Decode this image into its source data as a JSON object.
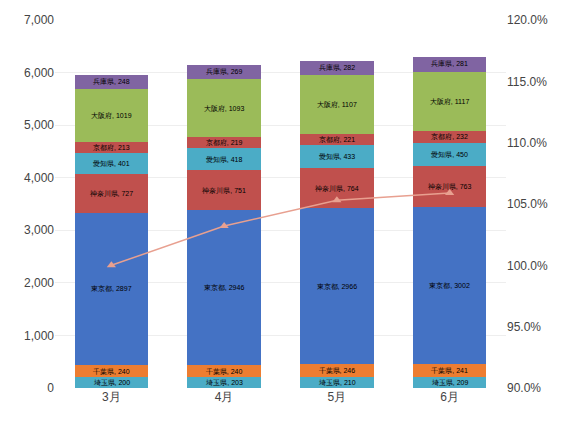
{
  "chart_data": {
    "type": "bar",
    "stacked": true,
    "data_labels": true,
    "grid": true,
    "categories": [
      "3月",
      "4月",
      "5月",
      "6月"
    ],
    "series": [
      {
        "name": "埼玉県",
        "color": "#4BACC6",
        "values": [
          200,
          203,
          210,
          209
        ],
        "value_labels": [
          "埼玉県, 200",
          "埼玉県, 203",
          "埼玉県, 210",
          "埼玉県, 209"
        ]
      },
      {
        "name": "千葉県",
        "color": "#ED7D31",
        "values": [
          240,
          240,
          246,
          241
        ],
        "value_labels": [
          "千葉県, 240",
          "千葉県, 240",
          "千葉県, 246",
          "千葉県, 241"
        ]
      },
      {
        "name": "東京都",
        "color": "#4472C4",
        "values": [
          2897,
          2946,
          2966,
          3002
        ],
        "value_labels": [
          "東京都, 2897",
          "東京都, 2946",
          "東京都, 2966",
          "東京都, 3002"
        ]
      },
      {
        "name": "神奈川県",
        "color": "#C0504D",
        "values": [
          727,
          751,
          764,
          763
        ],
        "value_labels": [
          "神奈川県, 727",
          "神奈川県, 751",
          "神奈川県, 764",
          "神奈川県, 763"
        ]
      },
      {
        "name": "愛知県",
        "color": "#4BACC6",
        "values": [
          401,
          418,
          433,
          450
        ],
        "value_labels": [
          "愛知県, 401",
          "愛知県, 418",
          "愛知県, 433",
          "愛知県, 450"
        ]
      },
      {
        "name": "京都府",
        "color": "#C0504D",
        "values": [
          213,
          219,
          221,
          232
        ],
        "value_labels": [
          "京都府, 213",
          "京都府, 219",
          "京都府, 221",
          "京都府, 232"
        ]
      },
      {
        "name": "大阪府",
        "color": "#9BBB59",
        "values": [
          1019,
          1093,
          1107,
          1117
        ],
        "value_labels": [
          "大阪府, 1019",
          "大阪府, 1093",
          "大阪府, 1107",
          "大阪府, 1117"
        ]
      },
      {
        "name": "兵庫県",
        "color": "#8064A2",
        "values": [
          248,
          269,
          282,
          281
        ],
        "value_labels": [
          "兵庫県, 248",
          "兵庫県, 269",
          "兵庫県, 282",
          "兵庫県, 281"
        ]
      },
      {
        "type": "line",
        "axis": "y2",
        "color": "#E8A090",
        "marker": "triangle-up",
        "values": [
          100.0,
          103.2,
          105.3,
          105.9
        ]
      }
    ],
    "ylim": [
      0,
      7000
    ],
    "yticks": [
      0,
      {
        "value": 1000,
        "label": "1,000"
      },
      {
        "value": 2000,
        "label": "2,000"
      },
      {
        "value": 3000,
        "label": "3,000"
      },
      {
        "value": 4000,
        "label": "4,000"
      },
      {
        "value": 5000,
        "label": "5,000"
      },
      {
        "value": 6000,
        "label": "6,000"
      },
      {
        "value": 7000,
        "label": "7,000"
      }
    ],
    "y2lim": [
      90.0,
      120.0
    ],
    "y2ticks": [
      {
        "value": 90.0,
        "label": "90.0%"
      },
      {
        "value": 95.0,
        "label": "95.0%"
      },
      {
        "value": 100.0,
        "label": "100.0%"
      },
      {
        "value": 105.0,
        "label": "105.0%"
      },
      {
        "value": 110.0,
        "label": "110.0%"
      },
      {
        "value": 115.0,
        "label": "115.0%"
      },
      {
        "value": 120.0,
        "label": "120.0%"
      }
    ]
  }
}
